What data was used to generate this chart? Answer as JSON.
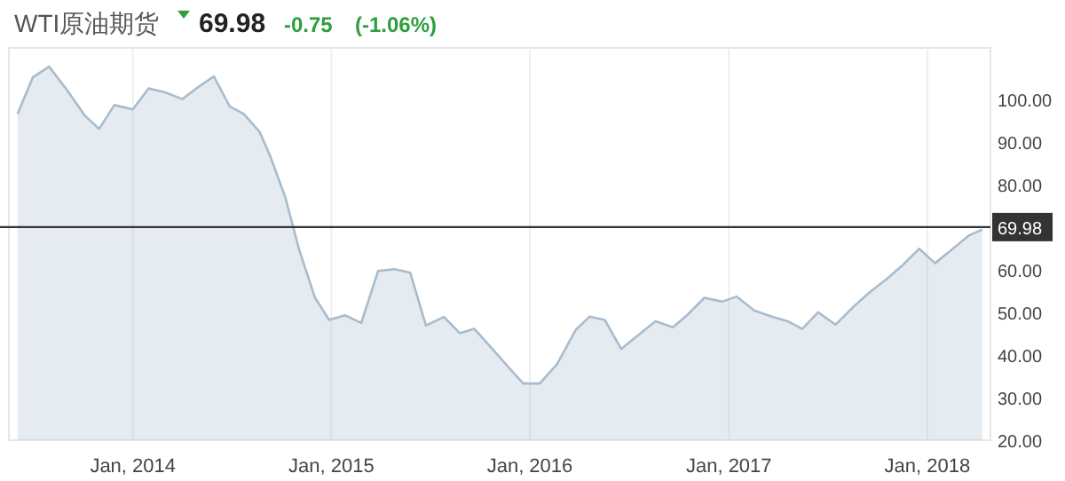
{
  "chart_data": {
    "type": "area",
    "title": "WTI原油期货",
    "annotations": [
      "69.98",
      "-0.75",
      "(-1.06%)"
    ],
    "x": [
      "2013-06-03",
      "2013-07-01",
      "2013-07-31",
      "2013-09-02",
      "2013-10-05",
      "2013-10-31",
      "2013-11-28",
      "2014-01-01",
      "2014-01-30",
      "2014-03-01",
      "2014-04-02",
      "2014-05-01",
      "2014-05-30",
      "2014-06-28",
      "2014-07-24",
      "2014-08-22",
      "2014-09-10",
      "2014-10-08",
      "2014-11-03",
      "2014-12-02",
      "2014-12-28",
      "2015-01-26",
      "2015-02-25",
      "2015-03-28",
      "2015-04-27",
      "2015-05-26",
      "2015-06-24",
      "2015-07-27",
      "2015-08-25",
      "2015-09-21",
      "2015-10-24",
      "2015-11-25",
      "2015-12-20",
      "2016-01-19",
      "2016-02-20",
      "2016-03-25",
      "2016-04-20",
      "2016-05-18",
      "2016-06-17",
      "2016-07-16",
      "2016-08-19",
      "2016-09-20",
      "2016-10-16",
      "2016-11-17",
      "2016-12-20",
      "2017-01-15",
      "2017-02-17",
      "2017-03-21",
      "2017-04-19",
      "2017-05-16",
      "2017-06-14",
      "2017-07-16",
      "2017-08-19",
      "2017-09-16",
      "2017-10-19",
      "2017-11-17",
      "2017-12-17",
      "2018-01-15",
      "2018-02-14",
      "2018-03-18",
      "2018-04-12"
    ],
    "series": [
      {
        "color": "#a9bccd",
        "values": [
          96.5,
          105.1,
          107.6,
          102.1,
          96.1,
          93.0,
          98.6,
          97.6,
          102.5,
          101.6,
          100.0,
          102.8,
          105.3,
          98.3,
          96.5,
          92.3,
          86.8,
          77.1,
          64.6,
          53.4,
          48.2,
          49.3,
          47.5,
          59.7,
          60.1,
          59.3,
          46.9,
          48.9,
          45.1,
          46.1,
          41.4,
          36.8,
          33.3,
          33.3,
          37.8,
          45.8,
          49.0,
          48.2,
          41.4,
          44.4,
          47.9,
          46.5,
          49.3,
          53.4,
          52.5,
          53.7,
          50.4,
          49.0,
          47.9,
          46.1,
          50.0,
          47.1,
          51.4,
          54.6,
          57.9,
          61.1,
          64.9,
          61.5,
          64.6,
          68.0,
          69.4
        ]
      }
    ],
    "xlim": [
      "2013-05-18",
      "2018-04-27"
    ],
    "xticks": [
      {
        "value": "2014-01-01",
        "label": "Jan, 2014"
      },
      {
        "value": "2015-01-01",
        "label": "Jan, 2015"
      },
      {
        "value": "2016-01-01",
        "label": "Jan, 2016"
      },
      {
        "value": "2017-01-01",
        "label": "Jan, 2017"
      },
      {
        "value": "2018-01-01",
        "label": "Jan, 2018"
      }
    ],
    "ylim": [
      20,
      112
    ],
    "yticks": [
      {
        "value": 20,
        "label": "20.00"
      },
      {
        "value": 30,
        "label": "30.00"
      },
      {
        "value": 40,
        "label": "40.00"
      },
      {
        "value": 50,
        "label": "50.00"
      },
      {
        "value": 60,
        "label": "60.00"
      },
      {
        "value": 80,
        "label": "80.00"
      },
      {
        "value": 90,
        "label": "90.00"
      },
      {
        "value": 100,
        "label": "100.00"
      }
    ],
    "ref_lines": [
      {
        "axis": "y",
        "value": 69.98,
        "label": "69.98",
        "color": "#333333"
      }
    ],
    "grid": "x"
  }
}
